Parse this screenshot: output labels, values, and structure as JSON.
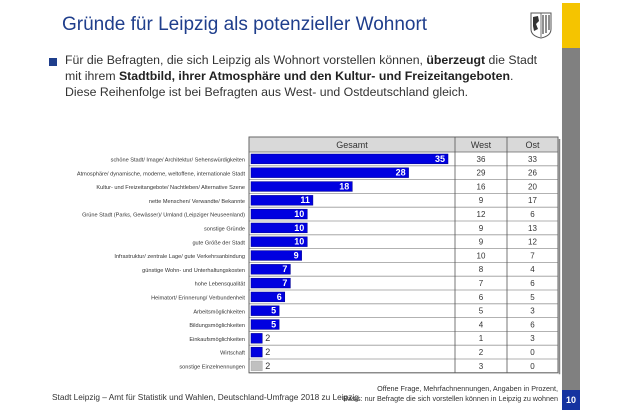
{
  "slide": {
    "title": "Gründe für Leipzig als potenzieller Wohnort",
    "intro": {
      "part1": "Für die Befragten, die sich Leipzig als Wohnort vorstellen können, ",
      "bold1": "überzeugt",
      "part2": " die Stadt mit ihrem ",
      "bold2": "Stadtbild, ihrer Atmosphäre und den Kultur- und Freizeitangeboten",
      "part3": ". Diese Reihenfolge ist bei Befragten aus West- und Ostdeutschland gleich."
    },
    "footer_left": "Stadt Leipzig – Amt für Statistik und Wahlen, Deutschland-Umfrage 2018 zu Leipzig",
    "footer_right_line1": "Offene Frage, Mehrfachnennungen, Angaben in Prozent,",
    "footer_right_line2": "Basis: nur Befragte die sich vorstellen können in Leipzig zu wohnen",
    "page_number": "10",
    "colors": {
      "title": "#1f3e8c",
      "bar": "#0000e0",
      "bar_other": "#c0c0c0",
      "header_bg": "#d9d9d9",
      "accent_yellow": "#f5c400",
      "sidebar_gray": "#808080",
      "page_box": "#1533a0"
    }
  },
  "chart_data": {
    "type": "table",
    "title": "Gründe für Leipzig als potenzieller Wohnort",
    "columns": [
      "Gesamt",
      "West",
      "Ost"
    ],
    "unit": "Prozent",
    "categories": [
      "schöne Stadt/ Image/ Architektur/ Sehenswürdigkeiten",
      "Atmosphäre/ dynamische, moderne, weltoffene, internationale Stadt",
      "Kultur- und Freizeitangebote/ Nachtleben/ Alternative Szene",
      "nette Menschen/ Verwandte/ Bekannte",
      "Grüne Stadt (Parks, Gewässer)/ Umland (Leipziger Neuseenland)",
      "sonstige Gründe",
      "gute Größe der Stadt",
      "Infrastruktur/ zentrale Lage/ gute Verkehrsanbindung",
      "günstige Wohn- und Unterhaltungskosten",
      "hohe Lebensqualität",
      "Heimatort/ Erinnerung/ Verbundenheit",
      "Arbeitsmöglichkeiten",
      "Bildungsmöglichkeiten",
      "Einkaufsmöglichkeiten",
      "Wirtschaft",
      "sonstige Einzelnennungen"
    ],
    "series": [
      {
        "name": "Gesamt",
        "values": [
          35,
          28,
          18,
          11,
          10,
          10,
          10,
          9,
          7,
          7,
          6,
          5,
          5,
          2,
          2,
          2
        ],
        "display": "bar"
      },
      {
        "name": "West",
        "values": [
          36,
          29,
          16,
          9,
          12,
          9,
          9,
          10,
          8,
          7,
          6,
          5,
          4,
          1,
          2,
          3
        ]
      },
      {
        "name": "Ost",
        "values": [
          33,
          26,
          20,
          17,
          6,
          13,
          12,
          7,
          4,
          6,
          5,
          3,
          6,
          3,
          0,
          0
        ]
      }
    ],
    "gray_bar_category": "sonstige Einzelnennungen",
    "xlim": [
      0,
      35
    ]
  }
}
